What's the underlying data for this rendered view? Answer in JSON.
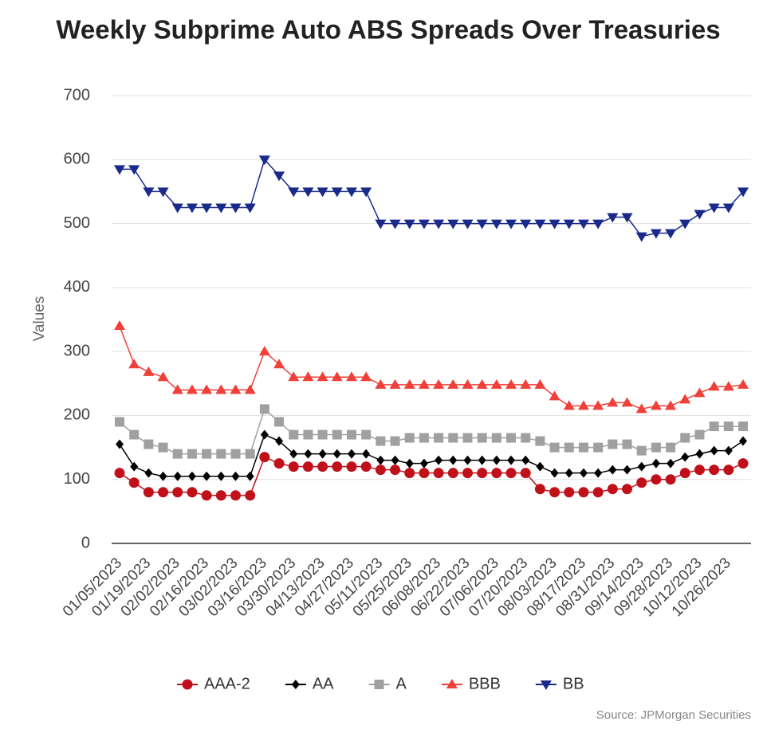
{
  "chart_data": {
    "type": "line",
    "title": "Weekly Subprime Auto ABS Spreads Over Treasuries",
    "y_label": "Values",
    "source": "Source: JPMorgan Securities",
    "categories": [
      "01/05/2023",
      null,
      "01/19/2023",
      null,
      "02/02/2023",
      null,
      "02/16/2023",
      null,
      "03/02/2023",
      null,
      "03/16/2023",
      null,
      "03/30/2023",
      null,
      "04/13/2023",
      null,
      "04/27/2023",
      null,
      "05/11/2023",
      null,
      "05/25/2023",
      null,
      "06/08/2023",
      null,
      "06/22/2023",
      null,
      "07/06/2023",
      null,
      "07/20/2023",
      null,
      "08/03/2023",
      null,
      "08/17/2023",
      null,
      "08/31/2023",
      null,
      "09/14/2023",
      null,
      "09/28/2023",
      null,
      "10/12/2023",
      null,
      "10/26/2023",
      null
    ],
    "series": [
      {
        "name": "AAA-2",
        "color": "#c0111b",
        "marker": "circle",
        "values": [
          110,
          95,
          80,
          80,
          80,
          80,
          75,
          75,
          75,
          75,
          135,
          125,
          120,
          120,
          120,
          120,
          120,
          120,
          115,
          115,
          110,
          110,
          110,
          110,
          110,
          110,
          110,
          110,
          110,
          85,
          80,
          80,
          80,
          80,
          85,
          85,
          95,
          100,
          100,
          110,
          115,
          115,
          115,
          125
        ]
      },
      {
        "name": "AA",
        "color": "#000000",
        "marker": "diamond",
        "values": [
          155,
          120,
          110,
          105,
          105,
          105,
          105,
          105,
          105,
          105,
          170,
          160,
          140,
          140,
          140,
          140,
          140,
          140,
          130,
          130,
          125,
          125,
          130,
          130,
          130,
          130,
          130,
          130,
          130,
          120,
          110,
          110,
          110,
          110,
          115,
          115,
          120,
          125,
          125,
          135,
          140,
          145,
          145,
          160
        ]
      },
      {
        "name": "A",
        "color": "#a0a0a0",
        "marker": "square",
        "values": [
          190,
          170,
          155,
          150,
          140,
          140,
          140,
          140,
          140,
          140,
          210,
          190,
          170,
          170,
          170,
          170,
          170,
          170,
          160,
          160,
          165,
          165,
          165,
          165,
          165,
          165,
          165,
          165,
          165,
          160,
          150,
          150,
          150,
          150,
          155,
          155,
          145,
          150,
          150,
          165,
          170,
          183,
          183,
          183
        ]
      },
      {
        "name": "BBB",
        "color": "#f0403a",
        "marker": "triangle-up",
        "values": [
          340,
          280,
          268,
          260,
          240,
          240,
          240,
          240,
          240,
          240,
          300,
          280,
          260,
          260,
          260,
          260,
          260,
          260,
          248,
          248,
          248,
          248,
          248,
          248,
          248,
          248,
          248,
          248,
          248,
          248,
          230,
          215,
          215,
          215,
          220,
          220,
          210,
          215,
          215,
          225,
          235,
          245,
          245,
          248
        ]
      },
      {
        "name": "BB",
        "color": "#1a2a8a",
        "marker": "triangle-down",
        "values": [
          585,
          585,
          550,
          550,
          525,
          525,
          525,
          525,
          525,
          525,
          600,
          575,
          550,
          550,
          550,
          550,
          550,
          550,
          500,
          500,
          500,
          500,
          500,
          500,
          500,
          500,
          500,
          500,
          500,
          500,
          500,
          500,
          500,
          500,
          510,
          510,
          480,
          485,
          485,
          500,
          515,
          525,
          525,
          550
        ]
      }
    ],
    "ylim": [
      0,
      700
    ],
    "yticks": [
      0,
      100,
      200,
      300,
      400,
      500,
      600,
      700
    ],
    "grid": true,
    "legend": "bottom"
  }
}
